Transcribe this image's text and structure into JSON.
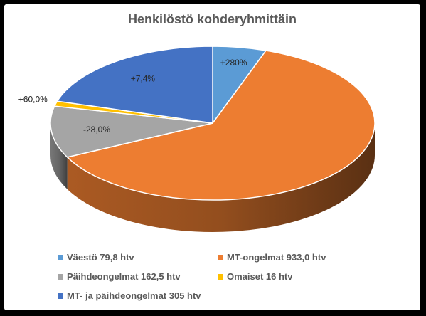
{
  "chart_data": {
    "type": "pie",
    "title": "Henkilöstö kohderyhmittäin",
    "slices": [
      {
        "label": "Väestö 79,8 htv",
        "value": 79.8,
        "change_label": "+280%",
        "color": "#5b9bd5"
      },
      {
        "label": "MT-ongelmat 933,0 htv",
        "value": 933.0,
        "change_label": "",
        "color": "#ed7d31"
      },
      {
        "label": "Päihdeongelmat 162,5 htv",
        "value": 162.5,
        "change_label": "-28,0%",
        "color": "#a5a5a5"
      },
      {
        "label": "Omaiset 16 htv",
        "value": 16,
        "change_label": "+60,0%",
        "color": "#ffc000"
      },
      {
        "label": "MT- ja päihdeongelmat 305 htv",
        "value": 305,
        "change_label": "+7,4%",
        "color": "#4472c4"
      }
    ],
    "legend_position": "bottom",
    "style": "3d"
  }
}
